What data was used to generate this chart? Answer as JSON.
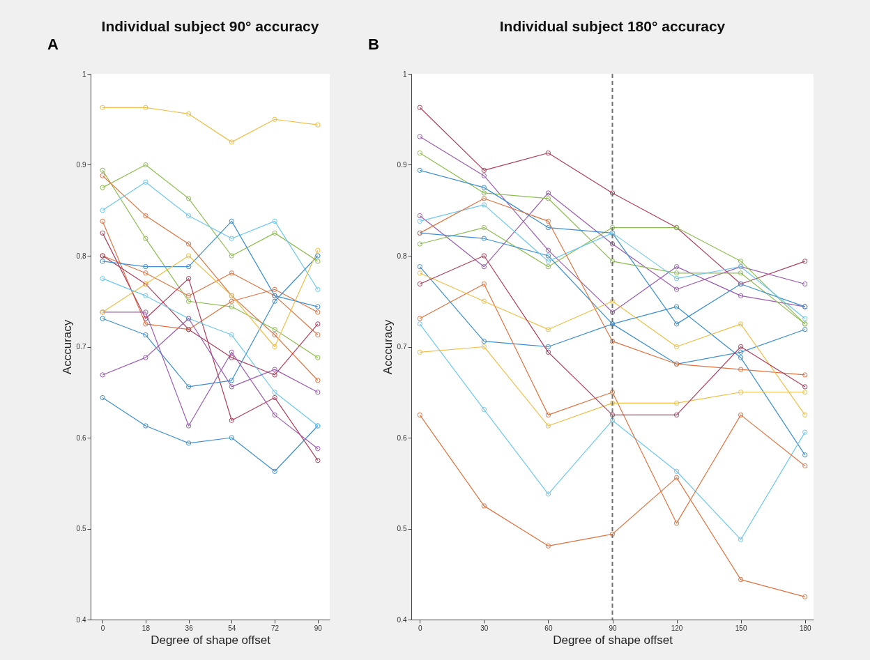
{
  "chart_data": [
    {
      "type": "line",
      "title": "Individual subject 90° accuracy",
      "xlabel": "Degree of shape offset",
      "ylabel": "Acccuracy",
      "annotations": [
        "A"
      ],
      "marker": "circle",
      "x": [
        0,
        18,
        36,
        54,
        72,
        90
      ],
      "xlim": [
        -5,
        95
      ],
      "xticks": [
        0,
        18,
        36,
        54,
        72,
        90
      ],
      "ylim": [
        0.4,
        1
      ],
      "yticks": [
        0.4,
        0.5,
        0.6,
        0.7,
        0.8,
        0.9,
        1
      ],
      "series": [
        {
          "color": "#f0be45",
          "values": [
            0.963,
            0.963,
            0.956,
            0.925,
            0.95,
            0.944
          ]
        },
        {
          "color": "#8cbd4e",
          "values": [
            0.875,
            0.9,
            0.863,
            0.8,
            0.825,
            0.794
          ]
        },
        {
          "color": "#8cbd4e",
          "values": [
            0.894,
            0.819,
            0.75,
            0.744,
            0.719,
            0.688
          ]
        },
        {
          "color": "#6cc8f0",
          "values": [
            0.85,
            0.881,
            0.844,
            0.819,
            0.838,
            0.763
          ]
        },
        {
          "color": "#e0723f",
          "values": [
            0.888,
            0.844,
            0.813,
            0.756,
            0.713,
            0.663
          ]
        },
        {
          "color": "#e0723f",
          "values": [
            0.838,
            0.725,
            0.719,
            0.75,
            0.763,
            0.738
          ]
        },
        {
          "color": "#e0723f",
          "values": [
            0.8,
            0.781,
            0.756,
            0.781,
            0.756,
            0.713
          ]
        },
        {
          "color": "#b03c5c",
          "values": [
            0.825,
            0.731,
            0.775,
            0.619,
            0.644,
            0.575
          ]
        },
        {
          "color": "#b03c5c",
          "values": [
            0.8,
            0.769,
            0.719,
            0.688,
            0.669,
            0.725
          ]
        },
        {
          "color": "#3b8fd1",
          "values": [
            0.794,
            0.788,
            0.788,
            0.838,
            0.756,
            0.744
          ]
        },
        {
          "color": "#3b8fd1",
          "values": [
            0.731,
            0.713,
            0.656,
            0.663,
            0.75,
            0.8
          ]
        },
        {
          "color": "#3b8fd1",
          "values": [
            0.644,
            0.613,
            0.594,
            0.6,
            0.563,
            0.613
          ]
        },
        {
          "color": "#6cc8f0",
          "values": [
            0.775,
            0.756,
            0.731,
            0.713,
            0.65,
            0.613
          ]
        },
        {
          "color": "#9a5bb0",
          "values": [
            0.738,
            0.738,
            0.613,
            0.694,
            0.625,
            0.588
          ]
        },
        {
          "color": "#9a5bb0",
          "values": [
            0.669,
            0.688,
            0.731,
            0.656,
            0.675,
            0.65
          ]
        },
        {
          "color": "#f0be45",
          "values": [
            0.738,
            0.769,
            0.8,
            0.756,
            0.7,
            0.806
          ]
        }
      ]
    },
    {
      "type": "line",
      "title": "Individual subject 180° accuracy",
      "xlabel": "Degree of shape offset",
      "ylabel": "Acccuracy",
      "annotations": [
        "B"
      ],
      "marker": "circle",
      "x": [
        0,
        30,
        60,
        90,
        120,
        150,
        180
      ],
      "xlim": [
        -4,
        184
      ],
      "xticks": [
        0,
        30,
        60,
        90,
        120,
        150,
        180
      ],
      "ylim": [
        0.4,
        1
      ],
      "yticks": [
        0.4,
        0.5,
        0.6,
        0.7,
        0.8,
        0.9,
        1
      ],
      "ref_lines": [
        {
          "axis": "x",
          "value": 90,
          "color": "#707070",
          "line_style": "dashed"
        }
      ],
      "series": [
        {
          "color": "#b03c5c",
          "values": [
            0.963,
            0.894,
            0.913,
            0.869,
            0.831,
            0.769,
            0.794
          ]
        },
        {
          "color": "#9a5bb0",
          "values": [
            0.931,
            0.888,
            0.806,
            0.738,
            0.788,
            0.756,
            0.744
          ]
        },
        {
          "color": "#9a5bb0",
          "values": [
            0.844,
            0.788,
            0.869,
            0.813,
            0.763,
            0.788,
            0.769
          ]
        },
        {
          "color": "#8cbd4e",
          "values": [
            0.913,
            0.869,
            0.863,
            0.794,
            0.781,
            0.781,
            0.725
          ]
        },
        {
          "color": "#8cbd4e",
          "values": [
            0.813,
            0.831,
            0.788,
            0.831,
            0.831,
            0.794,
            0.725
          ]
        },
        {
          "color": "#3b8fd1",
          "values": [
            0.894,
            0.875,
            0.831,
            0.825,
            0.725,
            0.769,
            0.744
          ]
        },
        {
          "color": "#3b8fd1",
          "values": [
            0.825,
            0.819,
            0.8,
            0.725,
            0.681,
            0.694,
            0.719
          ]
        },
        {
          "color": "#3b8fd1",
          "values": [
            0.788,
            0.706,
            0.7,
            0.725,
            0.744,
            0.688,
            0.581
          ]
        },
        {
          "color": "#6cc8f0",
          "values": [
            0.838,
            0.856,
            0.794,
            0.825,
            0.775,
            0.788,
            0.731
          ]
        },
        {
          "color": "#6cc8f0",
          "values": [
            0.725,
            0.631,
            0.538,
            0.619,
            0.563,
            0.488,
            0.606
          ]
        },
        {
          "color": "#e0723f",
          "values": [
            0.825,
            0.863,
            0.838,
            0.706,
            0.681,
            0.675,
            0.669
          ]
        },
        {
          "color": "#e0723f",
          "values": [
            0.731,
            0.769,
            0.625,
            0.65,
            0.506,
            0.625,
            0.569
          ]
        },
        {
          "color": "#e0723f",
          "values": [
            0.625,
            0.525,
            0.481,
            0.494,
            0.556,
            0.444,
            0.425
          ]
        },
        {
          "color": "#f0be45",
          "values": [
            0.781,
            0.75,
            0.719,
            0.75,
            0.7,
            0.725,
            0.625
          ]
        },
        {
          "color": "#f0be45",
          "values": [
            0.694,
            0.7,
            0.613,
            0.638,
            0.638,
            0.65,
            0.65
          ]
        },
        {
          "color": "#b03c5c",
          "values": [
            0.769,
            0.8,
            0.694,
            0.625,
            0.625,
            0.7,
            0.656
          ]
        }
      ]
    }
  ]
}
